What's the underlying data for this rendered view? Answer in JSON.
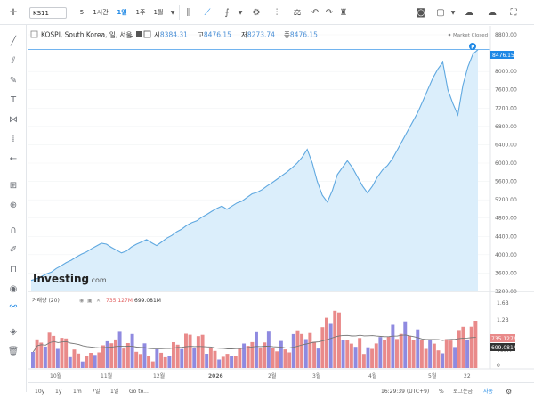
{
  "toolbar": {
    "symbol": "KS11",
    "intervals": [
      "5",
      "1시간",
      "1일",
      "1주",
      "1월"
    ],
    "active_interval": "1일"
  },
  "legend": {
    "title": "KOSPI, South Korea, 일, 서울",
    "open_label": "시",
    "open": "8384.31",
    "high_label": "고",
    "high": "8476.15",
    "low_label": "저",
    "low": "8273.74",
    "close_label": "종",
    "close": "8476.15",
    "market_status": "Market Closed",
    "volume_label": "거래량 (20)",
    "volume_value": "735.127M",
    "volume_ma": "699.081M"
  },
  "watermark": "Investing",
  "watermark_suffix": ".com",
  "last_price_tag": "8476.15",
  "vol_price_tag": "735.127M",
  "vol_ma_tag": "699.081M",
  "price_axis": [
    "8800.00",
    "8000.00",
    "7600.00",
    "7200.00",
    "6800.00",
    "6400.00",
    "6000.00",
    "5600.00",
    "5200.00",
    "4800.00",
    "4400.00",
    "4000.00",
    "3600.00",
    "3200.00"
  ],
  "volume_axis": [
    "1.6B",
    "1.2B",
    "800M",
    "400M",
    "0"
  ],
  "time_axis": [
    "10월",
    "11월",
    "12월",
    "2026",
    "2월",
    "3월",
    "4월",
    "5월",
    "22"
  ],
  "bottom": {
    "ranges": [
      "10y",
      "1y",
      "1m",
      "7일",
      "1일",
      "Go to..."
    ],
    "clock": "16:29:39 (UTC+9)",
    "pct": "%",
    "log": "로그눈금",
    "auto": "자동"
  },
  "colors": {
    "line": "#5fa8e0",
    "area": "#dbeefb",
    "vol_up": "#e98a8a",
    "vol_down": "#8f8ae0",
    "accent": "#1e88e5"
  },
  "chart_data": {
    "type": "area",
    "series": [
      {
        "values": [
          3440,
          3470,
          3520,
          3580,
          3620,
          3700,
          3760,
          3830,
          3880,
          3950,
          4010,
          4060,
          4130,
          4190,
          4250,
          4230,
          4160,
          4100,
          4040,
          4080,
          4170,
          4230,
          4280,
          4330,
          4260,
          4200,
          4280,
          4360,
          4420,
          4500,
          4560,
          4640,
          4700,
          4740,
          4820,
          4880,
          4950,
          5010,
          5060,
          4990,
          5060,
          5130,
          5170,
          5250,
          5330,
          5360,
          5420,
          5500,
          5570,
          5650,
          5730,
          5810,
          5900,
          6000,
          6130,
          6300,
          6000,
          5600,
          5300,
          5150,
          5400,
          5750,
          5900,
          6050,
          5900,
          5700,
          5500,
          5350,
          5500,
          5700,
          5850,
          5950,
          6100,
          6300,
          6500,
          6700,
          6900,
          7100,
          7350,
          7600,
          7850,
          8050,
          8200,
          7600,
          7300,
          7050,
          7700,
          8100,
          8380,
          8476
        ]
      }
    ],
    "ylim": [
      3200,
      8800
    ]
  }
}
